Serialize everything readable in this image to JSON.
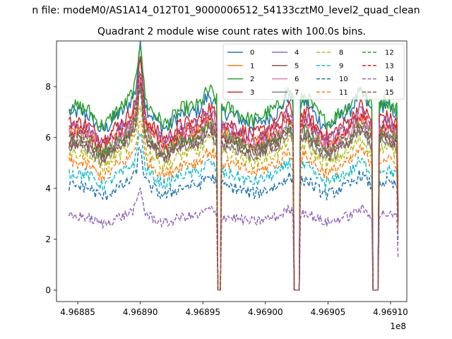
{
  "figure": {
    "suptitle": "n file: modeM0/AS1A14_012T01_9000006512_54133cztM0_level2_quad_clean",
    "background": "#ffffff"
  },
  "chart_data": {
    "type": "line",
    "title": "Quadrant 2 module wise count rates with 100.0s bins.",
    "xlabel": "",
    "ylabel": "",
    "x_offset_label": "1e8",
    "xlim": [
      496883300,
      496911300
    ],
    "ylim": [
      -0.45,
      9.8
    ],
    "x_ticks": [
      496885000,
      496890000,
      496895000,
      496900000,
      496905000,
      496910000
    ],
    "x_tick_labels": [
      "4.96885",
      "4.96890",
      "4.96895",
      "4.96900",
      "4.96905",
      "4.96910"
    ],
    "y_ticks": [
      0,
      2,
      4,
      6,
      8
    ],
    "y_tick_labels": [
      "0",
      "2",
      "4",
      "6",
      "8"
    ],
    "grid": false,
    "legend_location": "upper-right",
    "legend_columns": 4,
    "x_range": [
      496884300,
      496910600
    ],
    "bin_width": 100,
    "gaps": [
      [
        496896200,
        496896400
      ],
      [
        496902300,
        496902700
      ],
      [
        496908600,
        496909000
      ]
    ],
    "series": [
      {
        "name": "0",
        "color": "#1f77b4",
        "dash": "solid",
        "baseline": 7.0,
        "noise": 0.3
      },
      {
        "name": "1",
        "color": "#ff7f0e",
        "dash": "solid",
        "baseline": 6.2,
        "noise": 0.28
      },
      {
        "name": "2",
        "color": "#2ca02c",
        "dash": "solid",
        "baseline": 7.2,
        "noise": 0.3
      },
      {
        "name": "3",
        "color": "#d62728",
        "dash": "solid",
        "baseline": 6.6,
        "noise": 0.28
      },
      {
        "name": "4",
        "color": "#9467bd",
        "dash": "solid",
        "baseline": 6.4,
        "noise": 0.28
      },
      {
        "name": "5",
        "color": "#8c564b",
        "dash": "solid",
        "baseline": 5.9,
        "noise": 0.27
      },
      {
        "name": "6",
        "color": "#e377c2",
        "dash": "solid",
        "baseline": 6.1,
        "noise": 0.27
      },
      {
        "name": "7",
        "color": "#7f7f7f",
        "dash": "solid",
        "baseline": 5.7,
        "noise": 0.27
      },
      {
        "name": "8",
        "color": "#bcbd22",
        "dash": "dashed",
        "baseline": 5.4,
        "noise": 0.26
      },
      {
        "name": "9",
        "color": "#17becf",
        "dash": "dashed",
        "baseline": 4.6,
        "noise": 0.24
      },
      {
        "name": "10",
        "color": "#1f77b4",
        "dash": "dashed",
        "baseline": 4.1,
        "noise": 0.24
      },
      {
        "name": "11",
        "color": "#ff7f0e",
        "dash": "dashed",
        "baseline": 5.0,
        "noise": 0.25
      },
      {
        "name": "12",
        "color": "#2ca02c",
        "dash": "dashed",
        "baseline": 6.0,
        "noise": 0.27
      },
      {
        "name": "13",
        "color": "#d62728",
        "dash": "dashed",
        "baseline": 6.3,
        "noise": 0.28
      },
      {
        "name": "14",
        "color": "#9467bd",
        "dash": "dashed",
        "baseline": 2.9,
        "noise": 0.2
      },
      {
        "name": "15",
        "color": "#8c564b",
        "dash": "dashed",
        "baseline": 5.8,
        "noise": 0.27
      }
    ]
  }
}
